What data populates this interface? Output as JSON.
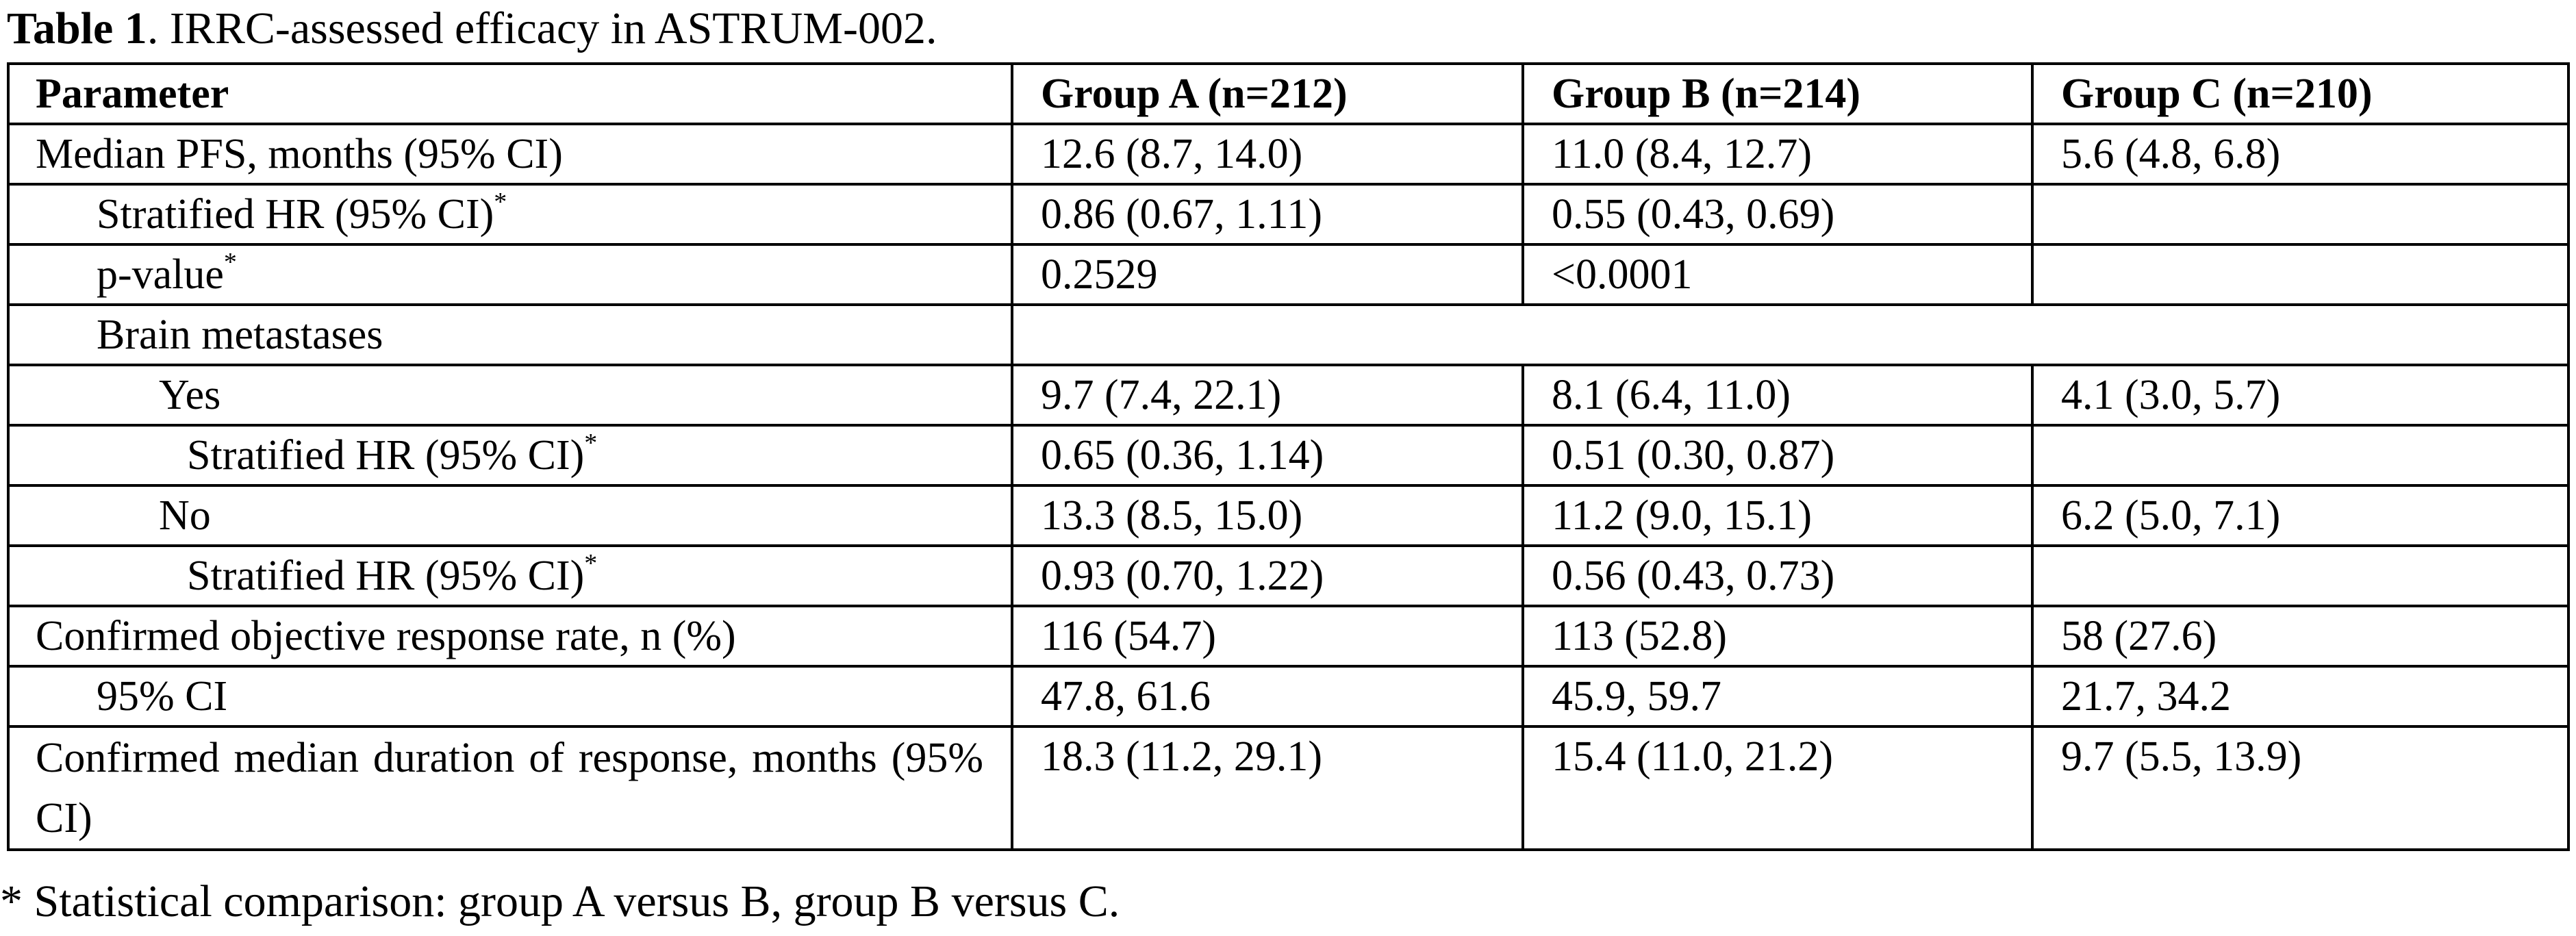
{
  "title": {
    "label": "Table 1",
    "text": ". IRRC-assessed efficacy in ASTRUM-002."
  },
  "table": {
    "header": [
      "Parameter",
      "Group A (n=212)",
      "Group B (n=214)",
      "Group C (n=210)"
    ],
    "rows": [
      {
        "label": "Median PFS, months (95% CI)",
        "cells": [
          "12.6 (8.7, 14.0)",
          "11.0 (8.4, 12.7)",
          "5.6 (4.8, 6.8)"
        ]
      },
      {
        "label": "Stratified HR (95% CI)",
        "note": "*",
        "cells": [
          "0.86 (0.67, 1.11)",
          "0.55 (0.43, 0.69)"
        ]
      },
      {
        "label": "p-value",
        "note": "*",
        "cells": [
          "0.2529",
          "<0.0001"
        ]
      },
      {
        "label": "Brain metastases"
      },
      {
        "label": "Yes",
        "cells": [
          "9.7 (7.4, 22.1)",
          "8.1 (6.4, 11.0)",
          "4.1 (3.0, 5.7)"
        ]
      },
      {
        "label": "Stratified HR (95% CI)",
        "note": "*",
        "cells": [
          "0.65 (0.36, 1.14)",
          "0.51 (0.30, 0.87)"
        ]
      },
      {
        "label": "No",
        "cells": [
          "13.3 (8.5, 15.0)",
          "11.2 (9.0, 15.1)",
          "6.2 (5.0, 7.1)"
        ]
      },
      {
        "label": "Stratified HR (95% CI)",
        "note": "*",
        "cells": [
          "0.93 (0.70, 1.22)",
          "0.56 (0.43, 0.73)"
        ]
      },
      {
        "label": "Confirmed objective response rate, n (%)",
        "cells": [
          "116 (54.7)",
          "113 (52.8)",
          "58 (27.6)"
        ]
      },
      {
        "label": "95% CI",
        "cells": [
          "47.8, 61.6",
          "45.9, 59.7",
          "21.7, 34.2"
        ]
      },
      {
        "label": "Confirmed median duration of response, months (95% CI)",
        "cells": [
          "18.3 (11.2, 29.1)",
          "15.4 (11.0, 21.2)",
          "9.7 (5.5, 13.9)"
        ]
      }
    ]
  },
  "footnote": "* Statistical comparison: group A versus B, group B versus C."
}
